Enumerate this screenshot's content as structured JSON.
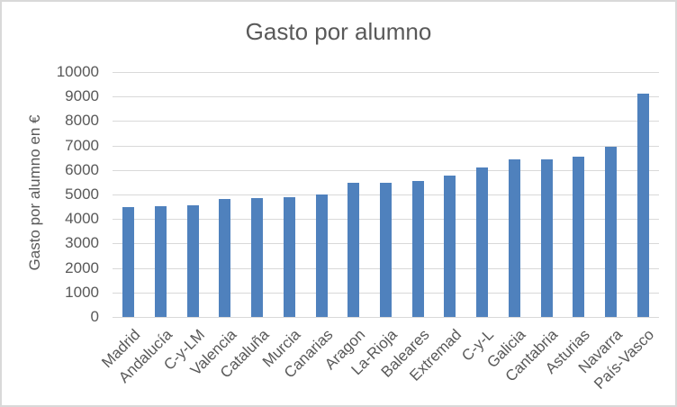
{
  "chart_data": {
    "type": "bar",
    "title": "Gasto por alumno",
    "xlabel": "",
    "ylabel": "Gasto por alumno en €",
    "categories": [
      "Madrid",
      "Andalucía",
      "C-y-LM",
      "Valencia",
      "Cataluña",
      "Murcia",
      "Canarias",
      "Aragon",
      "La-Rioja",
      "Baleares",
      "Extremad",
      "C-y-L",
      "Galicia",
      "Cantabria",
      "Asturias",
      "Navarra",
      "País-Vasco"
    ],
    "values": [
      4480,
      4520,
      4560,
      4810,
      4850,
      4880,
      5000,
      5480,
      5490,
      5560,
      5770,
      6110,
      6420,
      6430,
      6560,
      6960,
      9130
    ],
    "ylim": [
      0,
      10000
    ],
    "ytick_step": 1000,
    "grid": true,
    "legend": false,
    "colors": {
      "bar": "#4f81bd",
      "gridline": "#d9d9d9",
      "text": "#595959",
      "frame_border": "#d9d9d9",
      "background": "#ffffff"
    }
  }
}
